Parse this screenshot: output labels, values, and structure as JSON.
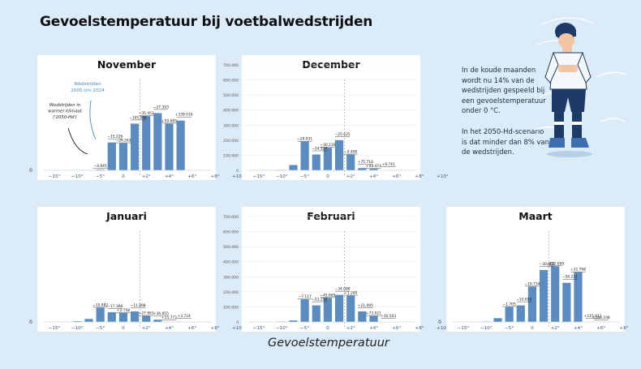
{
  "page": {
    "title": "Gevoelstemperatuur bij voetbalwedstrijden",
    "x_axis_title": "Gevoelstemperatuur",
    "side_text": [
      "In de koude maanden wordt nu 14% van de wedstrijden gespeeld bij een gevoelstemperatuur onder 0 °C.",
      "In het 2050-Hd-scenario is dat minder dan 8% van de wedstrijden."
    ],
    "annotations": {
      "observed": "Wedstrijden 2005 t/m 2024",
      "future": "Wedstrijden in warmer klimaat ('2050-Hd')"
    }
  },
  "colors": {
    "bar": "#5a8cc2",
    "panel_bg": "#ffffff",
    "page_bg": "#dcebf8",
    "tick_text": "#2f5a85",
    "annotation_blue": "#4a88c8"
  },
  "chart_data": [
    {
      "type": "bar",
      "title": "November",
      "categories": [
        "-15°",
        "-13°",
        "-11°",
        "-9°",
        "-7°",
        "-5°",
        "-3°",
        "-1°",
        "+1°",
        "+3°",
        "+5°",
        "+7°",
        "+9°",
        "+11°"
      ],
      "xticks": [
        "−15°",
        "−10°",
        "−5°",
        "0",
        "+2°",
        "+4°",
        "+6°",
        "+8°",
        "+10°"
      ],
      "ylim": [
        0,
        700000
      ],
      "ytick_labels": [
        "0"
      ],
      "series": [
        {
          "values": [
            0,
            0,
            0,
            0,
            4945,
            185000,
            180000,
            310000,
            360000,
            380000,
            310000,
            330000,
            0,
            0
          ]
        },
        {
          "values": [
            0,
            0,
            0,
            0,
            0,
            0,
            0,
            0,
            0,
            0,
            0,
            0,
            0,
            0
          ]
        }
      ],
      "data_labels": [
        "−4.945",
        "−15.226",
        "−29.263",
        "−105.006",
        "−35.451",
        "−27.393",
        "+50.685",
        "+339.016"
      ]
    },
    {
      "type": "bar",
      "title": "December",
      "categories": [
        "-15°",
        "-13°",
        "-11°",
        "-9°",
        "-7°",
        "-5°",
        "-3°",
        "-1°",
        "+1°",
        "+3°",
        "+5°",
        "+7°",
        "+9°",
        "+11°"
      ],
      "xticks": [
        "−15°",
        "−10°",
        "−5°",
        "0",
        "+2°",
        "+4°",
        "+6°",
        "+8°",
        "+10°"
      ],
      "ylim": [
        0,
        700000
      ],
      "ytick_labels": [
        "0",
        "100.000",
        "200.000",
        "300.000",
        "400.000",
        "500.000",
        "600.000",
        "700.000"
      ],
      "series": [
        {
          "values": [
            0,
            0,
            3000,
            35000,
            190000,
            105000,
            150000,
            200000,
            105000,
            15000,
            10000,
            0,
            0,
            0
          ]
        }
      ],
      "data_labels": [
        "−29.931",
        "−24.524",
        "−30.216",
        "−25.625",
        "−9.490",
        "+75.718",
        "+49.474",
        "+9.741"
      ]
    },
    {
      "type": "bar",
      "title": "Januari",
      "categories": [
        "-15°",
        "-13°",
        "-11°",
        "-9°",
        "-7°",
        "-5°",
        "-3°",
        "-1°",
        "+1°",
        "+3°",
        "+5°",
        "+7°",
        "+9°",
        "+11°"
      ],
      "xticks": [
        "−15°",
        "−10°",
        "−5°",
        "0",
        "+2°",
        "+4°",
        "+6°",
        "+8°",
        "+10°"
      ],
      "ylim": [
        0,
        700000
      ],
      "ytick_labels": [
        "0"
      ],
      "series": [
        {
          "values": [
            0,
            0,
            5000,
            20000,
            95000,
            65000,
            60000,
            70000,
            40000,
            15000,
            0,
            0,
            0,
            0
          ]
        }
      ],
      "data_labels": [
        "−10.982",
        "−17.386",
        "+2.758",
        "−11.898",
        "+27.663",
        "+36.855",
        "+15.772",
        "+3.724"
      ]
    },
    {
      "type": "bar",
      "title": "Februari",
      "categories": [
        "-15°",
        "-13°",
        "-11°",
        "-9°",
        "-7°",
        "-5°",
        "-3°",
        "-1°",
        "+1°",
        "+3°",
        "+5°",
        "+7°",
        "+9°",
        "+11°"
      ],
      "xticks": [
        "−15°",
        "−10°",
        "−5°",
        "0",
        "+2°",
        "+4°",
        "+6°",
        "+8°",
        "+10°"
      ],
      "ylim": [
        0,
        700000
      ],
      "ytick_labels": [
        "0",
        "100.000",
        "200.000",
        "300.000",
        "400.000",
        "500.000",
        "600.000",
        "700.000"
      ],
      "series": [
        {
          "values": [
            0,
            0,
            3000,
            10000,
            150000,
            110000,
            160000,
            180000,
            175000,
            70000,
            40000,
            0,
            0,
            0
          ]
        }
      ],
      "data_labels": [
        "−7.117",
        "−53.256",
        "−45.685",
        "−34.088",
        "+1.240",
        "+21.095",
        "+73.021",
        "+30.543"
      ]
    },
    {
      "type": "bar",
      "title": "Maart",
      "categories": [
        "-15°",
        "-13°",
        "-11°",
        "-9°",
        "-7°",
        "-5°",
        "-3°",
        "-1°",
        "+1°",
        "+3°",
        "+5°",
        "+7°",
        "+9°",
        "+11°"
      ],
      "xticks": [
        "−15°",
        "−10°",
        "−5°",
        "0",
        "+2°",
        "+4°",
        "+6°",
        "+8°",
        "+10°"
      ],
      "ylim": [
        0,
        700000
      ],
      "ytick_labels": [
        "0"
      ],
      "series": [
        {
          "values": [
            0,
            0,
            3000,
            25000,
            100000,
            110000,
            235000,
            345000,
            370000,
            260000,
            330000,
            0,
            0,
            0
          ]
        }
      ],
      "data_labels": [
        "−1.705",
        "−10.654",
        "−16.734",
        "−30.962",
        "−102.699",
        "−58.231",
        "+31.798",
        "+115.011",
        "+206.198"
      ]
    }
  ]
}
